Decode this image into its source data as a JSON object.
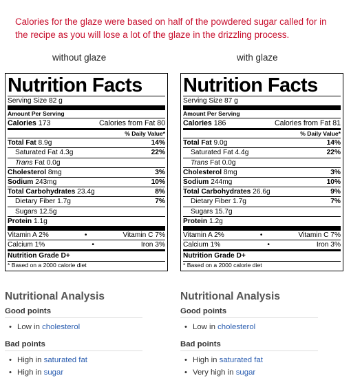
{
  "note": "Calories for the glaze were based on half of the powdered sugar called for in the recipe as you will lose a lot of the glaze in the drizzling process.",
  "labels": [
    {
      "column_label": "without glaze",
      "title": "Nutrition Facts",
      "serving_size": "Serving Size 82 g",
      "amount_per_serving": "Amount Per Serving",
      "calories_label": "Calories",
      "calories": "173",
      "calories_fat": "Calories from Fat 80",
      "daily_value": "% Daily Value*",
      "total_fat_label": "Total Fat",
      "total_fat": "8.9g",
      "total_fat_dv": "14%",
      "sat_fat": "Saturated Fat 4.3g",
      "sat_fat_dv": "22%",
      "trans_fat_label": "Trans",
      "trans_fat": "Fat 0.0g",
      "cholesterol_label": "Cholesterol",
      "cholesterol": "8mg",
      "cholesterol_dv": "3%",
      "sodium_label": "Sodium",
      "sodium": "243mg",
      "sodium_dv": "10%",
      "carbs_label": "Total Carbohydrates",
      "carbs": "23.4g",
      "carbs_dv": "8%",
      "fiber": "Dietary Fiber 1.7g",
      "fiber_dv": "7%",
      "sugars": "Sugars 12.5g",
      "protein_label": "Protein",
      "protein": "1.1g",
      "vit_a": "Vitamin A 2%",
      "vit_c": "Vitamin C 7%",
      "calcium": "Calcium 1%",
      "iron": "Iron 3%",
      "grade": "Nutrition Grade D+",
      "footnote": "* Based on a 2000 calorie diet",
      "analysis": {
        "heading": "Nutritional Analysis",
        "good_heading": "Good points",
        "good": [
          {
            "prefix": "Low in",
            "link": "cholesterol"
          }
        ],
        "bad_heading": "Bad points",
        "bad": [
          {
            "prefix": "High in",
            "link": "saturated fat"
          },
          {
            "prefix": "High in",
            "link": "sugar"
          }
        ]
      }
    },
    {
      "column_label": "with glaze",
      "title": "Nutrition Facts",
      "serving_size": "Serving Size 87 g",
      "amount_per_serving": "Amount Per Serving",
      "calories_label": "Calories",
      "calories": "186",
      "calories_fat": "Calories from Fat 81",
      "daily_value": "% Daily Value*",
      "total_fat_label": "Total Fat",
      "total_fat": "9.0g",
      "total_fat_dv": "14%",
      "sat_fat": "Saturated Fat 4.4g",
      "sat_fat_dv": "22%",
      "trans_fat_label": "Trans",
      "trans_fat": "Fat 0.0g",
      "cholesterol_label": "Cholesterol",
      "cholesterol": "8mg",
      "cholesterol_dv": "3%",
      "sodium_label": "Sodium",
      "sodium": "244mg",
      "sodium_dv": "10%",
      "carbs_label": "Total Carbohydrates",
      "carbs": "26.6g",
      "carbs_dv": "9%",
      "fiber": "Dietary Fiber 1.7g",
      "fiber_dv": "7%",
      "sugars": "Sugars 15.7g",
      "protein_label": "Protein",
      "protein": "1.2g",
      "vit_a": "Vitamin A 2%",
      "vit_c": "Vitamin C 7%",
      "calcium": "Calcium 1%",
      "iron": "Iron 3%",
      "grade": "Nutrition Grade D+",
      "footnote": "* Based on a 2000 calorie diet",
      "analysis": {
        "heading": "Nutritional Analysis",
        "good_heading": "Good points",
        "good": [
          {
            "prefix": "Low in",
            "link": "cholesterol"
          }
        ],
        "bad_heading": "Bad points",
        "bad": [
          {
            "prefix": "High in",
            "link": "saturated fat"
          },
          {
            "prefix": "Very high in",
            "link": "sugar"
          }
        ]
      }
    }
  ]
}
